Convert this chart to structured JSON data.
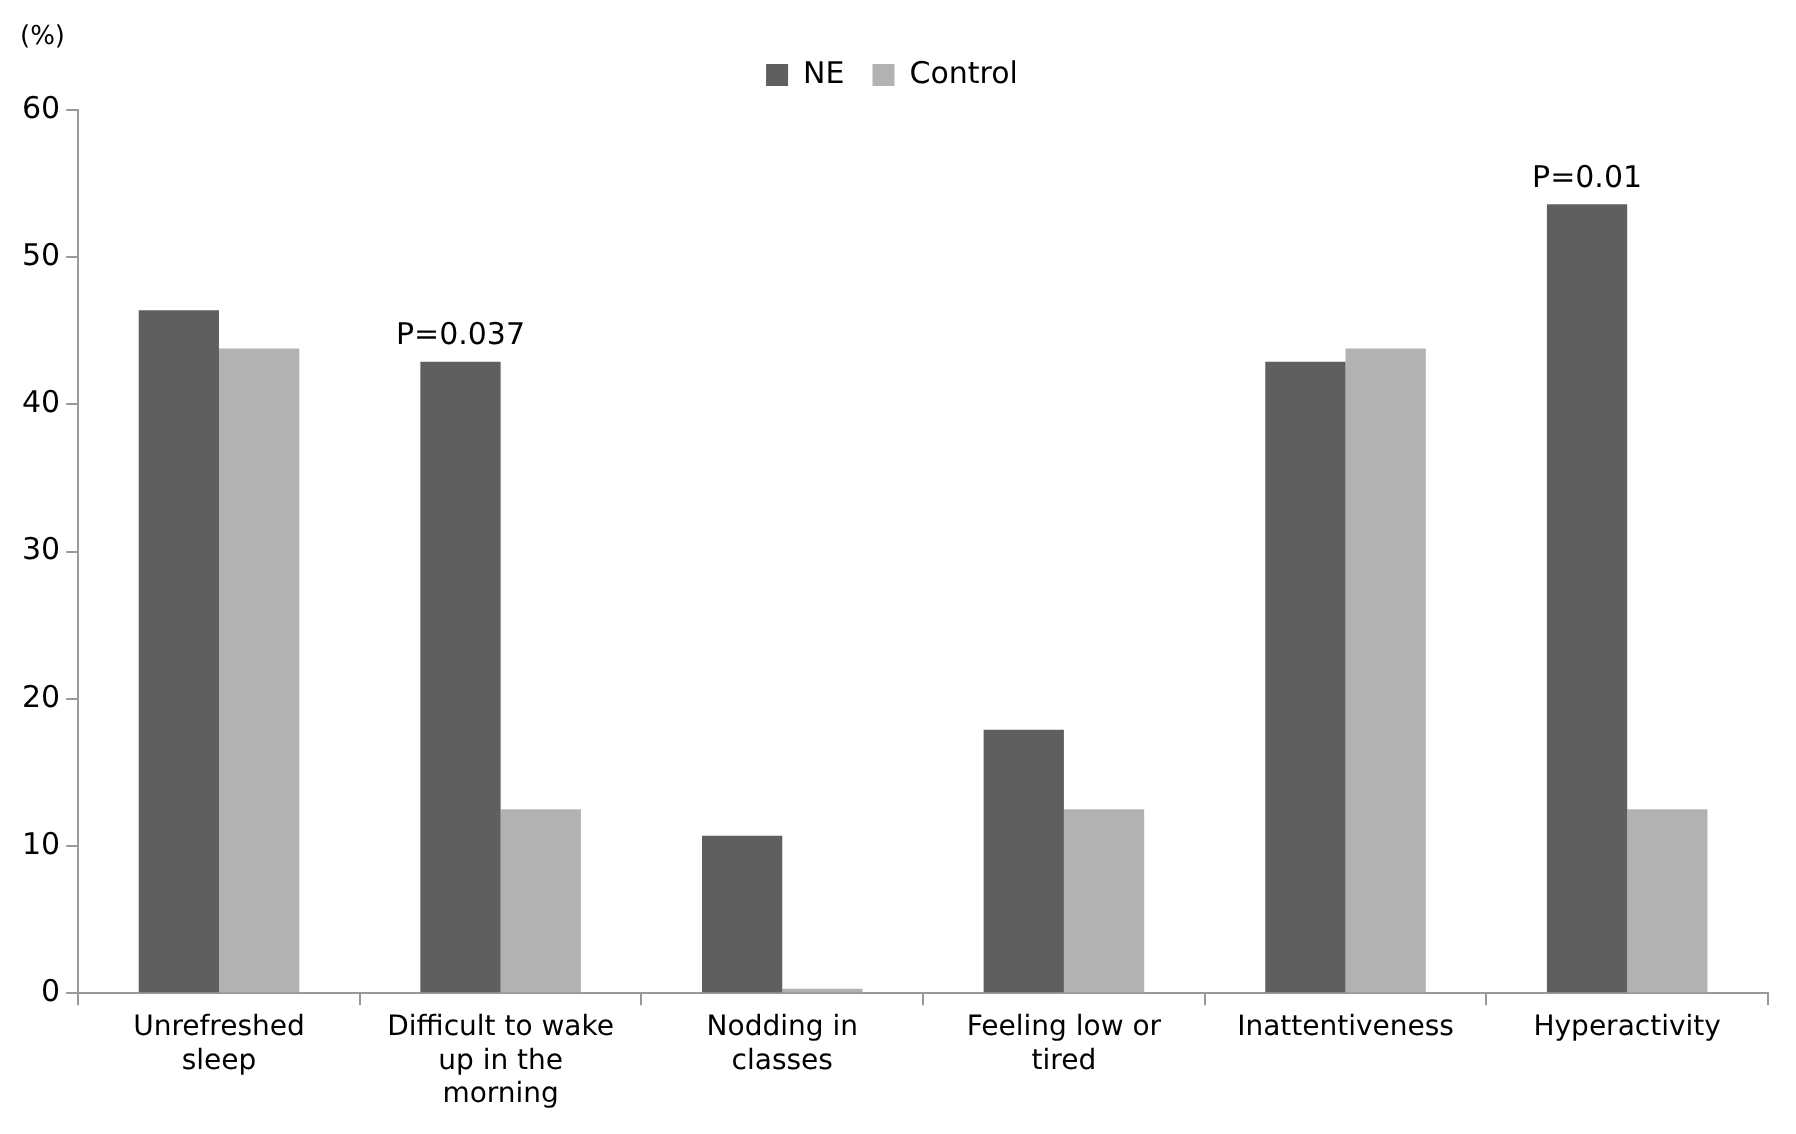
{
  "chart_data": {
    "type": "bar",
    "ylabel": "(%)",
    "categories": [
      "Unrefreshed sleep",
      "Difficult to wake up in the morning",
      "Nodding in classes",
      "Feeling low or tired",
      "Inattentiveness",
      "Hyperactivity"
    ],
    "series": [
      {
        "name": "NE",
        "color": "#5f5f5f",
        "values": [
          46.4,
          42.9,
          10.7,
          17.9,
          42.9,
          53.6
        ]
      },
      {
        "name": "Control",
        "color": "#b2b2b2",
        "values": [
          43.8,
          12.5,
          0.3,
          12.5,
          43.8,
          12.5
        ]
      }
    ],
    "ylim": [
      0,
      60
    ],
    "yticks": [
      0,
      10,
      20,
      30,
      40,
      50,
      60
    ],
    "grid": false,
    "legend": "top",
    "annotations": [
      {
        "text": "P=0.037",
        "x": "Difficult to wake up in the morning",
        "y": 42.9
      },
      {
        "text": "P=0.01",
        "x": "Hyperactivity",
        "y": 53.6
      }
    ]
  }
}
